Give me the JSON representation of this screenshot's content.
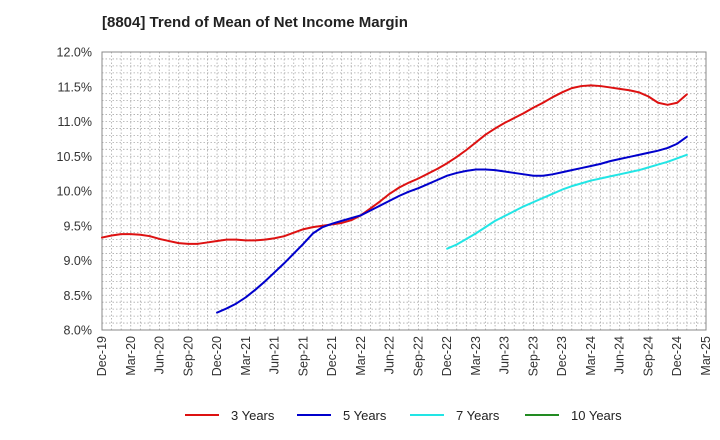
{
  "chart_data": {
    "type": "line",
    "title": "[8804]  Trend of Mean of Net Income Margin",
    "xlabel": "",
    "ylabel": "",
    "ylim": [
      8.0,
      12.0
    ],
    "yticks": [
      "8.0%",
      "8.5%",
      "9.0%",
      "9.5%",
      "10.0%",
      "10.5%",
      "11.0%",
      "11.5%",
      "12.0%"
    ],
    "xticks": [
      "Dec-19",
      "Mar-20",
      "Jun-20",
      "Sep-20",
      "Dec-20",
      "Mar-21",
      "Jun-21",
      "Sep-21",
      "Dec-21",
      "Mar-22",
      "Jun-22",
      "Sep-22",
      "Dec-22",
      "Mar-23",
      "Jun-23",
      "Sep-23",
      "Dec-23",
      "Mar-24",
      "Jun-24",
      "Sep-24",
      "Dec-24",
      "Mar-25"
    ],
    "grid": true,
    "legend_position": "bottom",
    "series": [
      {
        "name": "3 Years",
        "color": "#dd1111",
        "points": [
          [
            "Dec-19",
            9.33
          ],
          [
            "Jan-20",
            9.36
          ],
          [
            "Feb-20",
            9.38
          ],
          [
            "Mar-20",
            9.38
          ],
          [
            "Apr-20",
            9.37
          ],
          [
            "May-20",
            9.35
          ],
          [
            "Jun-20",
            9.31
          ],
          [
            "Jul-20",
            9.28
          ],
          [
            "Aug-20",
            9.25
          ],
          [
            "Sep-20",
            9.24
          ],
          [
            "Oct-20",
            9.24
          ],
          [
            "Nov-20",
            9.26
          ],
          [
            "Dec-20",
            9.28
          ],
          [
            "Jan-21",
            9.3
          ],
          [
            "Feb-21",
            9.3
          ],
          [
            "Mar-21",
            9.29
          ],
          [
            "Apr-21",
            9.29
          ],
          [
            "May-21",
            9.3
          ],
          [
            "Jun-21",
            9.32
          ],
          [
            "Jul-21",
            9.35
          ],
          [
            "Aug-21",
            9.4
          ],
          [
            "Sep-21",
            9.45
          ],
          [
            "Oct-21",
            9.48
          ],
          [
            "Nov-21",
            9.5
          ],
          [
            "Dec-21",
            9.52
          ],
          [
            "Jan-22",
            9.54
          ],
          [
            "Feb-22",
            9.58
          ],
          [
            "Mar-22",
            9.65
          ],
          [
            "Apr-22",
            9.75
          ],
          [
            "May-22",
            9.85
          ],
          [
            "Jun-22",
            9.96
          ],
          [
            "Jul-22",
            10.05
          ],
          [
            "Aug-22",
            10.12
          ],
          [
            "Sep-22",
            10.18
          ],
          [
            "Oct-22",
            10.25
          ],
          [
            "Nov-22",
            10.32
          ],
          [
            "Dec-22",
            10.4
          ],
          [
            "Jan-23",
            10.49
          ],
          [
            "Feb-23",
            10.59
          ],
          [
            "Mar-23",
            10.7
          ],
          [
            "Apr-23",
            10.81
          ],
          [
            "May-23",
            10.9
          ],
          [
            "Jun-23",
            10.98
          ],
          [
            "Jul-23",
            11.05
          ],
          [
            "Aug-23",
            11.12
          ],
          [
            "Sep-23",
            11.2
          ],
          [
            "Oct-23",
            11.27
          ],
          [
            "Nov-23",
            11.35
          ],
          [
            "Dec-23",
            11.42
          ],
          [
            "Jan-24",
            11.48
          ],
          [
            "Feb-24",
            11.51
          ],
          [
            "Mar-24",
            11.52
          ],
          [
            "Apr-24",
            11.51
          ],
          [
            "May-24",
            11.49
          ],
          [
            "Jun-24",
            11.47
          ],
          [
            "Jul-24",
            11.45
          ],
          [
            "Aug-24",
            11.42
          ],
          [
            "Sep-24",
            11.36
          ],
          [
            "Oct-24",
            11.27
          ],
          [
            "Nov-24",
            11.24
          ],
          [
            "Dec-24",
            11.27
          ],
          [
            "Jan-25",
            11.39
          ]
        ]
      },
      {
        "name": "5 Years",
        "color": "#0000cc",
        "points": [
          [
            "Dec-20",
            8.25
          ],
          [
            "Jan-21",
            8.31
          ],
          [
            "Feb-21",
            8.38
          ],
          [
            "Mar-21",
            8.47
          ],
          [
            "Apr-21",
            8.58
          ],
          [
            "May-21",
            8.7
          ],
          [
            "Jun-21",
            8.83
          ],
          [
            "Jul-21",
            8.96
          ],
          [
            "Aug-21",
            9.1
          ],
          [
            "Sep-21",
            9.24
          ],
          [
            "Oct-21",
            9.39
          ],
          [
            "Nov-21",
            9.48
          ],
          [
            "Dec-21",
            9.53
          ],
          [
            "Jan-22",
            9.57
          ],
          [
            "Feb-22",
            9.61
          ],
          [
            "Mar-22",
            9.65
          ],
          [
            "Apr-22",
            9.72
          ],
          [
            "May-22",
            9.79
          ],
          [
            "Jun-22",
            9.86
          ],
          [
            "Jul-22",
            9.93
          ],
          [
            "Aug-22",
            9.99
          ],
          [
            "Sep-22",
            10.04
          ],
          [
            "Oct-22",
            10.1
          ],
          [
            "Nov-22",
            10.16
          ],
          [
            "Dec-22",
            10.22
          ],
          [
            "Jan-23",
            10.26
          ],
          [
            "Feb-23",
            10.29
          ],
          [
            "Mar-23",
            10.31
          ],
          [
            "Apr-23",
            10.31
          ],
          [
            "May-23",
            10.3
          ],
          [
            "Jun-23",
            10.28
          ],
          [
            "Jul-23",
            10.26
          ],
          [
            "Aug-23",
            10.24
          ],
          [
            "Sep-23",
            10.22
          ],
          [
            "Oct-23",
            10.22
          ],
          [
            "Nov-23",
            10.24
          ],
          [
            "Dec-23",
            10.27
          ],
          [
            "Jan-24",
            10.3
          ],
          [
            "Feb-24",
            10.33
          ],
          [
            "Mar-24",
            10.36
          ],
          [
            "Apr-24",
            10.39
          ],
          [
            "May-24",
            10.43
          ],
          [
            "Jun-24",
            10.46
          ],
          [
            "Jul-24",
            10.49
          ],
          [
            "Aug-24",
            10.52
          ],
          [
            "Sep-24",
            10.55
          ],
          [
            "Oct-24",
            10.58
          ],
          [
            "Nov-24",
            10.62
          ],
          [
            "Dec-24",
            10.68
          ],
          [
            "Jan-25",
            10.78
          ]
        ]
      },
      {
        "name": "7 Years",
        "color": "#22e5e5",
        "points": [
          [
            "Dec-22",
            9.17
          ],
          [
            "Jan-23",
            9.23
          ],
          [
            "Feb-23",
            9.31
          ],
          [
            "Mar-23",
            9.39
          ],
          [
            "Apr-23",
            9.48
          ],
          [
            "May-23",
            9.57
          ],
          [
            "Jun-23",
            9.64
          ],
          [
            "Jul-23",
            9.71
          ],
          [
            "Aug-23",
            9.78
          ],
          [
            "Sep-23",
            9.84
          ],
          [
            "Oct-23",
            9.9
          ],
          [
            "Nov-23",
            9.96
          ],
          [
            "Dec-23",
            10.02
          ],
          [
            "Jan-24",
            10.07
          ],
          [
            "Feb-24",
            10.11
          ],
          [
            "Mar-24",
            10.15
          ],
          [
            "Apr-24",
            10.18
          ],
          [
            "May-24",
            10.21
          ],
          [
            "Jun-24",
            10.24
          ],
          [
            "Jul-24",
            10.27
          ],
          [
            "Aug-24",
            10.3
          ],
          [
            "Sep-24",
            10.34
          ],
          [
            "Oct-24",
            10.38
          ],
          [
            "Nov-24",
            10.42
          ],
          [
            "Dec-24",
            10.47
          ],
          [
            "Jan-25",
            10.52
          ]
        ]
      },
      {
        "name": "10 Years",
        "color": "#228b22",
        "points": []
      }
    ]
  }
}
